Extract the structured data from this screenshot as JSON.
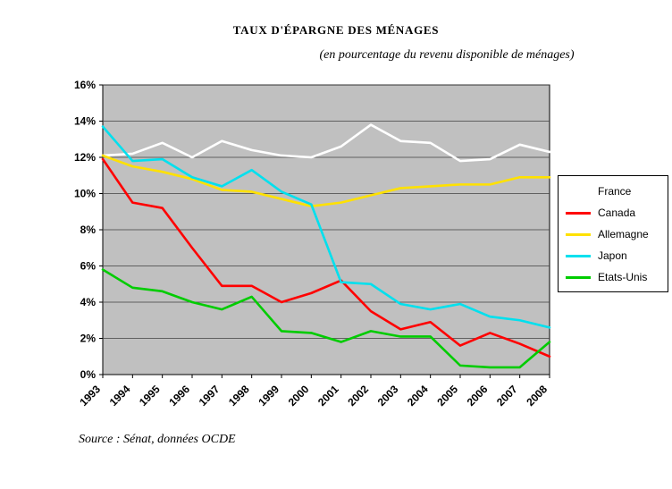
{
  "page": {
    "title": "TAUX D'ÉPARGNE DES MÉNAGES",
    "subtitle": "(en pourcentage du revenu disponible de ménages)",
    "source": "Source : Sénat, données OCDE"
  },
  "chart_data": {
    "type": "line",
    "title": "TAUX D'ÉPARGNE DES MÉNAGES",
    "subtitle": "(en pourcentage du revenu disponible de ménages)",
    "x": [
      1993,
      1994,
      1995,
      1996,
      1997,
      1998,
      1999,
      2000,
      2001,
      2002,
      2003,
      2004,
      2005,
      2006,
      2007,
      2008
    ],
    "series": [
      {
        "name": "France",
        "color": "#ffffff",
        "values": [
          12.1,
          12.2,
          12.8,
          12.0,
          12.9,
          12.4,
          12.1,
          12.0,
          12.6,
          13.8,
          12.9,
          12.8,
          11.8,
          11.9,
          12.7,
          12.3
        ]
      },
      {
        "name": "Canada",
        "color": "#ff0000",
        "values": [
          11.9,
          9.5,
          9.2,
          7.0,
          4.9,
          4.9,
          4.0,
          4.5,
          5.2,
          3.5,
          2.5,
          2.9,
          1.6,
          2.3,
          1.7,
          1.0
        ]
      },
      {
        "name": "Allemagne",
        "color": "#ffe100",
        "values": [
          12.1,
          11.5,
          11.2,
          10.8,
          10.2,
          10.1,
          9.7,
          9.3,
          9.5,
          9.9,
          10.3,
          10.4,
          10.5,
          10.5,
          10.9,
          10.9
        ]
      },
      {
        "name": "Japon",
        "color": "#00e0ee",
        "values": [
          13.7,
          11.8,
          11.9,
          10.9,
          10.4,
          11.3,
          10.1,
          9.4,
          5.1,
          5.0,
          3.9,
          3.6,
          3.9,
          3.2,
          3.0,
          2.6
        ]
      },
      {
        "name": "Etats-Unis",
        "color": "#00cc00",
        "values": [
          5.8,
          4.8,
          4.6,
          4.0,
          3.6,
          4.3,
          2.4,
          2.3,
          1.8,
          2.4,
          2.1,
          2.1,
          0.5,
          0.4,
          0.4,
          1.8
        ]
      }
    ],
    "ylim": [
      0,
      16
    ],
    "ytick_step": 2,
    "ytick_labels": [
      "0%",
      "2%",
      "4%",
      "6%",
      "8%",
      "10%",
      "12%",
      "14%",
      "16%"
    ],
    "xlabel": "",
    "ylabel": "",
    "plot_bg": "#c0c0c0",
    "grid": true,
    "legend_position": "right"
  }
}
